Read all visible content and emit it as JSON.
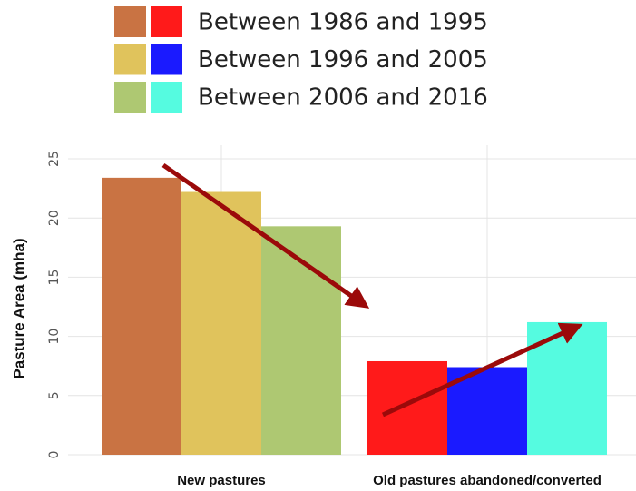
{
  "chart_data": {
    "type": "bar",
    "ylabel": "Pasture Area (mha)",
    "categories": [
      "New pastures",
      "Old pastures abandoned/converted"
    ],
    "series": [
      {
        "name": "Between 1986 and 1995",
        "colors": [
          "#c97343",
          "#ff1a1a"
        ],
        "values": [
          23.4,
          7.9
        ]
      },
      {
        "name": "Between 1996 and 2005",
        "colors": [
          "#e0c35c",
          "#1a1aff"
        ],
        "values": [
          22.2,
          7.4
        ]
      },
      {
        "name": "Between 2006 and 2016",
        "colors": [
          "#aec872",
          "#55fbe0"
        ],
        "values": [
          19.3,
          11.2
        ]
      }
    ],
    "ylim": [
      0,
      25
    ],
    "yticks": [
      0,
      5,
      10,
      15,
      20,
      25
    ],
    "grid": true
  }
}
